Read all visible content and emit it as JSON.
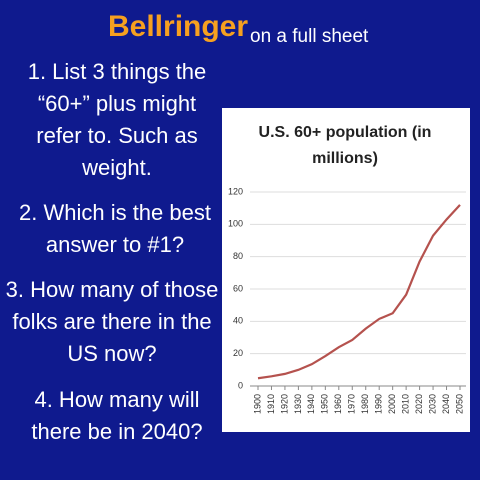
{
  "slide": {
    "title": "Bellringer",
    "subtitle": "on a full sheet",
    "items": [
      "1. List 3 things the “60+” plus might refer to. Such as weight.",
      "2. Which is the best answer to #1?",
      "3. How many of those folks are there in the US now?",
      "4. How many will there be in 2040?"
    ]
  },
  "chart_data": {
    "type": "line",
    "title": "U.S. 60+ population (in millions)",
    "x": [
      1900,
      1910,
      1920,
      1930,
      1940,
      1950,
      1960,
      1970,
      1980,
      1990,
      2000,
      2010,
      2020,
      2030,
      2040,
      2050
    ],
    "xlim": [
      1900,
      2050
    ],
    "xticks": [
      1900,
      1910,
      1920,
      1930,
      1940,
      1950,
      1960,
      1970,
      1980,
      1990,
      2000,
      2010,
      2020,
      2030,
      2040,
      2050
    ],
    "values": [
      4.8,
      6,
      7.5,
      10,
      13.5,
      18.5,
      24,
      28.5,
      35.5,
      41.5,
      45,
      56.5,
      77,
      93,
      103,
      112
    ],
    "color": "#b5524e",
    "ylim": [
      0,
      120
    ],
    "yticks": [
      0,
      20,
      40,
      60,
      80,
      100,
      120
    ],
    "grid": true
  }
}
